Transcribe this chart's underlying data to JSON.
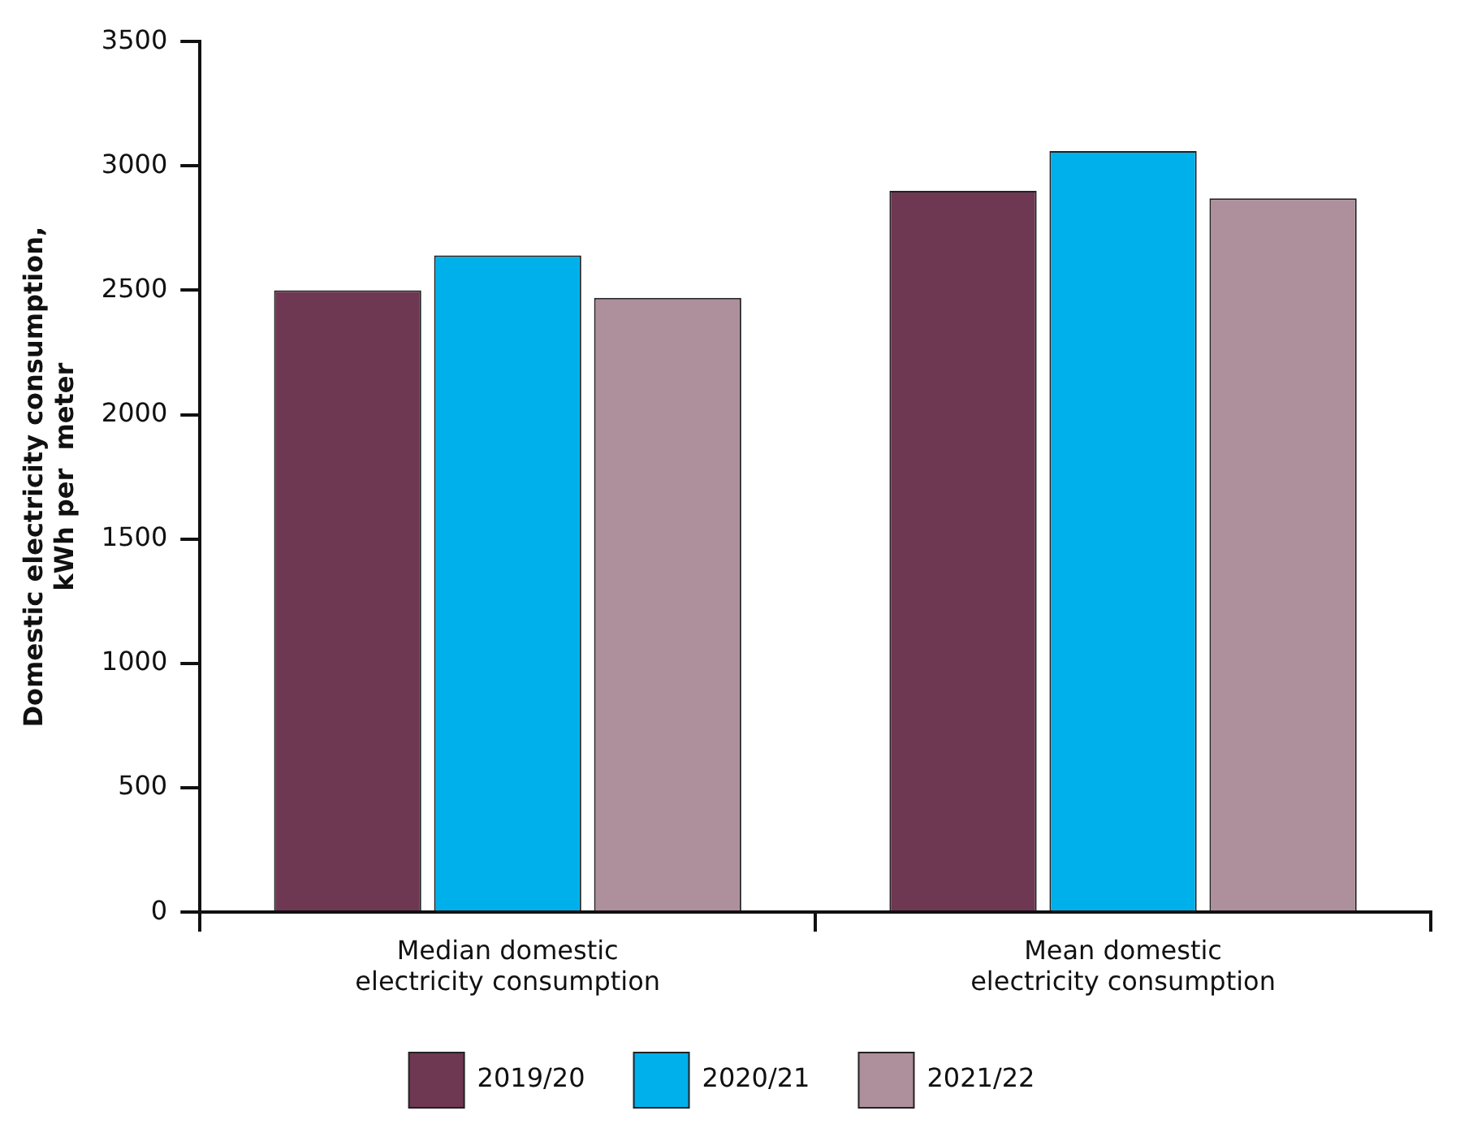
{
  "chart_data": {
    "type": "bar",
    "ylabel": "Domestic electricity consumption, kWh per  meter",
    "categories": [
      "Median domestic electricity consumption",
      "Mean domestic electricity consumption"
    ],
    "series": [
      {
        "name": "2019/20",
        "color": "#6e3752",
        "values": [
          2500,
          2900
        ]
      },
      {
        "name": "2020/21",
        "color": "#00b0ea",
        "values": [
          2640,
          3060
        ]
      },
      {
        "name": "2021/22",
        "color": "#ae8f9c",
        "values": [
          2470,
          2870
        ]
      }
    ],
    "ylim": [
      0,
      3500
    ],
    "yticks": [
      0,
      500,
      1000,
      1500,
      2000,
      2500,
      3000,
      3500
    ],
    "grid": false,
    "legend": "bottom"
  }
}
